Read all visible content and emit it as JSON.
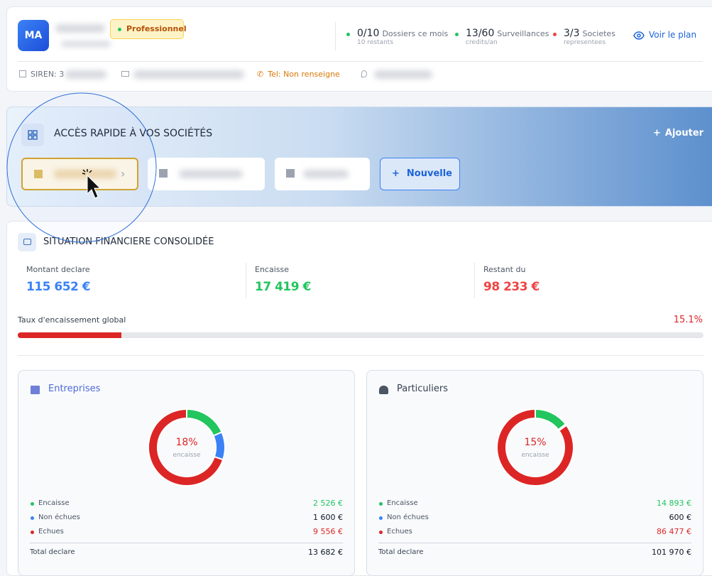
{
  "header": {
    "avatar": "MA",
    "badge": "Professionnel",
    "stats": [
      {
        "value": "0/10",
        "label": "Dossiers ce mois",
        "sub": "10 restants",
        "color": "#22c55e"
      },
      {
        "value": "13/60",
        "label": "Surveillances",
        "sub": "credits/an",
        "color": "#22c55e"
      },
      {
        "value": "3/3",
        "label": "Societes",
        "sub": "representees",
        "color": "#ef4444"
      }
    ],
    "plan_link": "Voir le plan",
    "siren": "SIREN: 3",
    "tel": "Tel: Non renseigne"
  },
  "quick_access": {
    "title": "ACCÈS RAPIDE À VOS SOCIÉTÉS",
    "add": "Ajouter",
    "new": "Nouvelle"
  },
  "finance": {
    "title": "SITUATION FINANCIERE CONSOLIDÉE",
    "kpis": [
      {
        "label": "Montant declare",
        "value": "115 652 €",
        "color": "#3b82f6"
      },
      {
        "label": "Encaisse",
        "value": "17 419 €",
        "color": "#22c55e"
      },
      {
        "label": "Restant du",
        "value": "98 233 €",
        "color": "#ef4444"
      }
    ],
    "rate_label": "Taux d'encaissement global",
    "rate": {
      "value": 15.1,
      "label": "15.1%"
    },
    "panels": [
      {
        "title": "Entreprises",
        "center": {
          "value": 18,
          "label": "18%"
        },
        "center_sub": "encaisse",
        "legend": [
          {
            "name": "Encaisse",
            "value": 2526,
            "label": "2 526 €",
            "color": "#22c55e"
          },
          {
            "name": "Non échues",
            "value": 1600,
            "label": "1 600 €",
            "color": "#3b82f6"
          },
          {
            "name": "Echues",
            "value": 9556,
            "label": "9 556 €",
            "color": "#dc2626"
          }
        ],
        "total_label": "Total declare",
        "total": "13 682 €"
      },
      {
        "title": "Particuliers",
        "center": {
          "value": 15,
          "label": "15%"
        },
        "center_sub": "encaisse",
        "legend": [
          {
            "name": "Encaisse",
            "value": 14893,
            "label": "14 893 €",
            "color": "#22c55e"
          },
          {
            "name": "Non échues",
            "value": 600,
            "label": "600 €",
            "color": "#3b82f6"
          },
          {
            "name": "Echues",
            "value": 86477,
            "label": "86 477 €",
            "color": "#dc2626"
          }
        ],
        "total_label": "Total declare",
        "total": "101 970 €"
      }
    ]
  }
}
